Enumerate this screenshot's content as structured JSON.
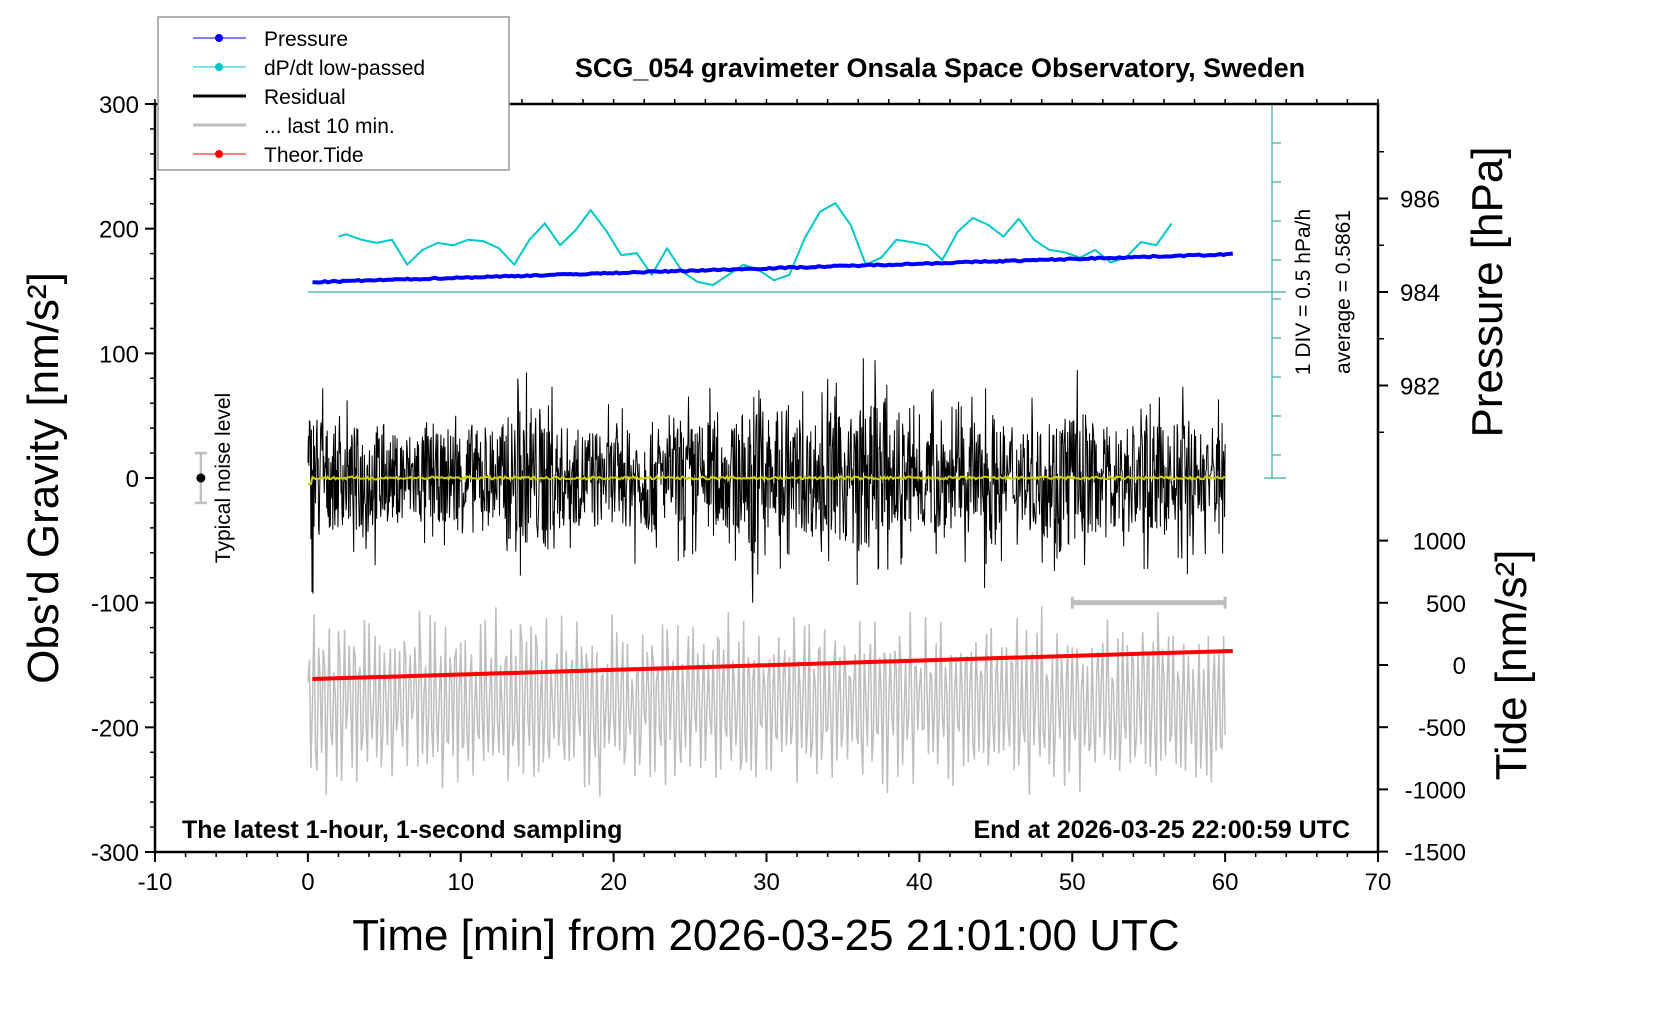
{
  "chart_data": {
    "type": "line",
    "title": "SCG_054 gravimeter Onsala Space Observatory, Sweden",
    "xlabel": "Time [min] from 2026-03-25 21:01:00 UTC",
    "ylabel": "Obs'd Gravity [nm/s²]",
    "y2label": "Pressure [hPa]",
    "y3label": "Tide [nm/s²]",
    "xlim": [
      -10,
      70
    ],
    "ylim": [
      -300,
      300
    ],
    "pressure_lim_labels": [
      982,
      984,
      986
    ],
    "tide_lim": [
      -1500,
      1000
    ],
    "xticks": [
      -10,
      0,
      10,
      20,
      30,
      40,
      50,
      60,
      70
    ],
    "yticks": [
      -300,
      -200,
      -100,
      0,
      100,
      200,
      300
    ],
    "pressure_ticks": [
      982,
      984,
      986
    ],
    "tide_ticks": [
      -1500,
      -1000,
      -500,
      0,
      500,
      1000
    ],
    "legend_placement": "top-left",
    "legend": [
      {
        "label": "Pressure",
        "color": "#0000ff",
        "marker": true
      },
      {
        "label": "dP/dt low-passed",
        "color": "#00c8c8",
        "marker": true
      },
      {
        "label": "Residual",
        "color": "#000000",
        "marker": false
      },
      {
        "label": "... last 10 min.",
        "color": "#bebebe",
        "marker": false
      },
      {
        "label": "Theor.Tide",
        "color": "#ff0000",
        "marker": true
      }
    ],
    "annotations": {
      "bottom_left": "The latest 1-hour, 1-second sampling",
      "bottom_right": "End at 2026-03-25 22:00:59 UTC",
      "noise_label": "Typical noise level",
      "dpdt_scale": "1 DIV = 0.5 hPa/h",
      "dpdt_average": "average = 0.5861"
    },
    "noise_level": {
      "x": -7,
      "center": 0,
      "half_range": 20
    },
    "last10_window": {
      "x_start": 50,
      "x_end": 60,
      "y": -100
    },
    "series": {
      "pressure": {
        "unit": "hPa",
        "x_start": 0.3,
        "x_end": 60.5,
        "start": 984.21,
        "end": 984.81
      },
      "theor_tide": {
        "unit": "nm/s²",
        "x_start": 0.3,
        "x_end": 60.5,
        "start": -113,
        "end": 113
      },
      "dpdt": {
        "unit": "hPa/h",
        "baseline_pressure": 984,
        "x": [
          2,
          2.5,
          3.5,
          4.5,
          5.5,
          6.5,
          7.5,
          8.5,
          9.5,
          10.5,
          11.5,
          12.5,
          13.5,
          14.5,
          15.5,
          16.5,
          17.5,
          18.5,
          19.5,
          20.5,
          21.5,
          22.5,
          23.5,
          24.5,
          25.5,
          26.5,
          27.5,
          28.5,
          29.5,
          30.5,
          31.5,
          32.5,
          33.5,
          34.5,
          35.5,
          36.5,
          37.5,
          38.5,
          39.5,
          40.5,
          41.5,
          42.5,
          43.5,
          44.5,
          45.5,
          46.5,
          47.5,
          48.5,
          49.5,
          50.5,
          51.5,
          52.5,
          53.5,
          54.5,
          55.5,
          56.5
        ],
        "values": [
          0.71,
          0.74,
          0.67,
          0.63,
          0.67,
          0.35,
          0.54,
          0.63,
          0.6,
          0.67,
          0.65,
          0.56,
          0.35,
          0.67,
          0.88,
          0.6,
          0.79,
          1.05,
          0.79,
          0.47,
          0.5,
          0.22,
          0.56,
          0.26,
          0.13,
          0.09,
          0.22,
          0.35,
          0.28,
          0.15,
          0.22,
          0.69,
          1.03,
          1.14,
          0.86,
          0.35,
          0.44,
          0.67,
          0.64,
          0.6,
          0.41,
          0.77,
          0.95,
          0.86,
          0.71,
          0.94,
          0.67,
          0.54,
          0.51,
          0.44,
          0.54,
          0.38,
          0.44,
          0.64,
          0.6,
          0.88
        ]
      },
      "residual_peak_per_minute": [
        95,
        70,
        65,
        70,
        75,
        60,
        65,
        70,
        60,
        70,
        75,
        65,
        70,
        85,
        90,
        100,
        70,
        65,
        70,
        60,
        65,
        70,
        75,
        60,
        70,
        75,
        80,
        70,
        90,
        130,
        90,
        70,
        75,
        80,
        85,
        90,
        100,
        125,
        80,
        70,
        75,
        80,
        70,
        75,
        90,
        70,
        65,
        70,
        80,
        100,
        90,
        75,
        70,
        80,
        85,
        70,
        75,
        80,
        70,
        75
      ],
      "last10_center": -180,
      "last10_peak": 80
    }
  }
}
